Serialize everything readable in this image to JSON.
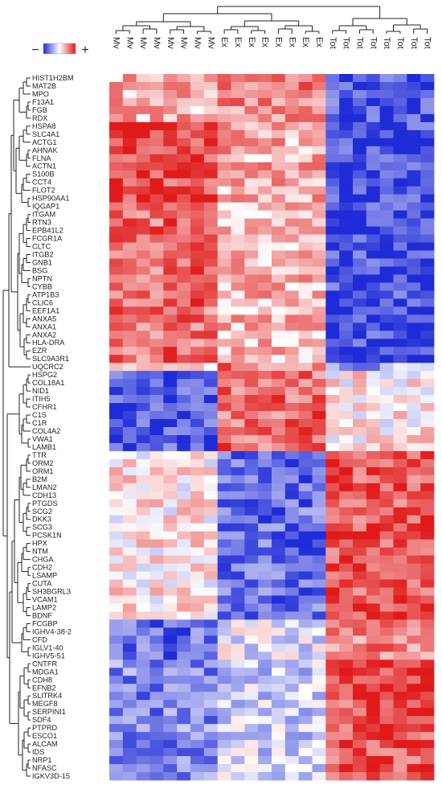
{
  "legend": {
    "low": "−",
    "high": "+",
    "colors": [
      "#1f2bd6",
      "#ffffff",
      "#e01a1a"
    ]
  },
  "chart_data": {
    "type": "heatmap",
    "rows": [
      "HIST1H2BM",
      "MAT2B",
      "MPO",
      "F13A1",
      "FGB",
      "RDX",
      "HSPA8",
      "SLC4A1",
      "ACTG1",
      "AHNAK",
      "FLNA",
      "ACTN1",
      "S100B",
      "CCT4",
      "FLOT2",
      "HSP90AA1",
      "IQGAP1",
      "ITGAM",
      "RTN3",
      "EPB41L2",
      "FCGR1A",
      "CLTC",
      "ITGB2",
      "GNB1",
      "BSG",
      "NPTN",
      "CYBB",
      "ATP1B3",
      "CLIC6",
      "EEF1A1",
      "ANXA5",
      "ANXA1",
      "ANXA2",
      "HLA-DRA",
      "EZR",
      "SLC9A3R1",
      "UQCRC2",
      "HSPG2",
      "COL18A1",
      "NID1",
      "ITIH5",
      "CFHR1",
      "C1S",
      "C1R",
      "COL4A2",
      "VWA1",
      "LAMB1",
      "TTR",
      "ORM2",
      "ORM1",
      "B2M",
      "LMAN2",
      "CDH13",
      "PTGDS",
      "SCG2",
      "DKK3",
      "SCG3",
      "PCSK1N",
      "HPX",
      "NTM",
      "CHGA",
      "CDH2",
      "LSAMP",
      "CUTA",
      "SH3BGRL3",
      "VCAM1",
      "LAMP2",
      "BDNF",
      "FCGBP",
      "IGHV4-38-2",
      "CFD",
      "IGLV1-40",
      "IGHV5-51",
      "CNTFR",
      "MDGA1",
      "CDH8",
      "EFNB2",
      "SLITRK4",
      "MEGF8",
      "SERPINI1",
      "SDF4",
      "PTPRD",
      "ESCO1",
      "ALCAM",
      "IDS",
      "NRP1",
      "NFASC",
      "IGKV3D-15"
    ],
    "columns": [
      "Mv",
      "Mv",
      "Mv",
      "Mv",
      "Mv",
      "Mv",
      "Mv",
      "Mv",
      "Ex",
      "Ex",
      "Ex",
      "Ex",
      "Ex",
      "Ex",
      "Ex",
      "Ex",
      "Tot",
      "Tot",
      "Tot",
      "Tot",
      "Tot",
      "Tot",
      "Tot",
      "Tot"
    ],
    "groups": [
      "Mv",
      "Ex",
      "Tot"
    ],
    "group_order": [
      "Mv",
      "Ex",
      "Tot"
    ],
    "blocks": [
      {
        "rows": [
          0,
          5
        ],
        "levels": [
          0.35,
          0.55,
          -0.8
        ]
      },
      {
        "rows": [
          6,
          16
        ],
        "levels": [
          0.8,
          0.35,
          -0.85
        ]
      },
      {
        "rows": [
          17,
          35
        ],
        "levels": [
          0.65,
          0.3,
          -0.85
        ]
      },
      {
        "rows": [
          36,
          36
        ],
        "levels": [
          0.1,
          0.6,
          -0.4
        ]
      },
      {
        "rows": [
          37,
          46
        ],
        "levels": [
          -0.8,
          0.65,
          0.1
        ]
      },
      {
        "rows": [
          47,
          67
        ],
        "levels": [
          0.1,
          -0.7,
          0.75
        ]
      },
      {
        "rows": [
          68,
          72
        ],
        "levels": [
          -0.7,
          -0.1,
          0.5
        ]
      },
      {
        "rows": [
          73,
          87
        ],
        "levels": [
          -0.55,
          -0.2,
          0.75
        ]
      }
    ],
    "value_range": [
      -1,
      1
    ],
    "xlabel": "",
    "ylabel": ""
  }
}
